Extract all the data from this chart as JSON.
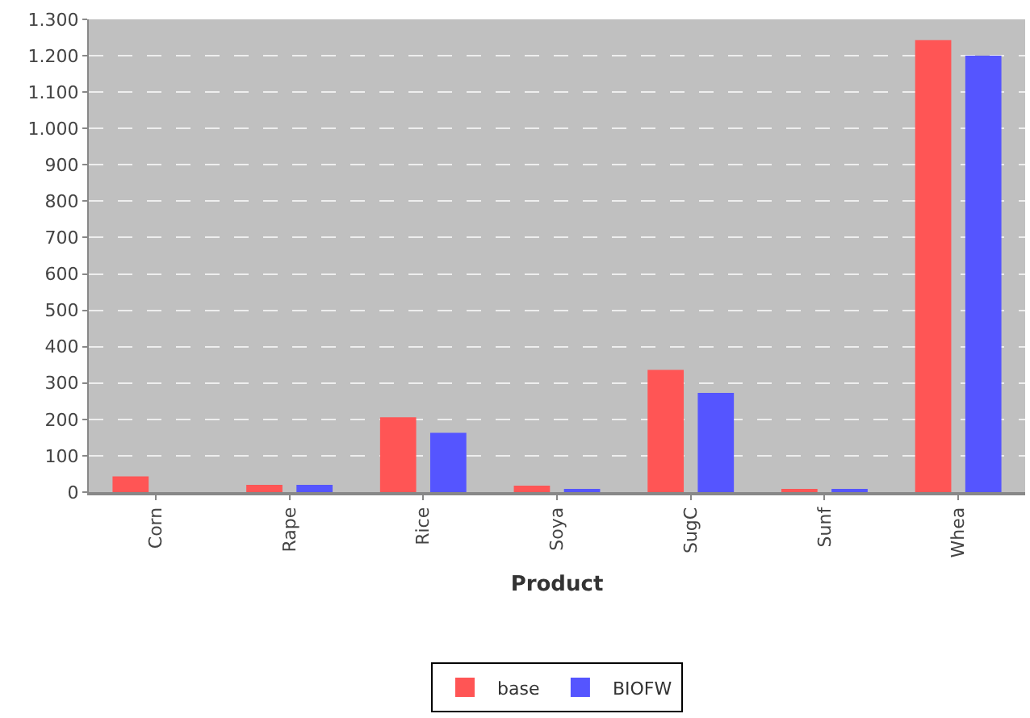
{
  "chart_data": {
    "type": "bar",
    "xlabel": "Product",
    "categories": [
      "Corn",
      "Rape",
      "Rice",
      "Soya",
      "SugC",
      "Sunf",
      "Whea"
    ],
    "series": [
      {
        "name": "base",
        "color": "#ff5555",
        "values": [
          43,
          20,
          206,
          18,
          336,
          5,
          1243
        ]
      },
      {
        "name": "BIOFW",
        "color": "#5555ff",
        "values": [
          0,
          20,
          163,
          8,
          273,
          5,
          1200
        ]
      }
    ],
    "ylim": [
      0,
      1300
    ],
    "yticks": [
      0,
      100,
      200,
      300,
      400,
      500,
      600,
      700,
      800,
      900,
      {
        "value": 1000,
        "label": "1.000"
      },
      {
        "value": 1100,
        "label": "1.100"
      },
      {
        "value": 1200,
        "label": "1.200"
      },
      {
        "value": 1300,
        "label": "1.300"
      }
    ],
    "grid": "y",
    "legend": "bottom"
  }
}
